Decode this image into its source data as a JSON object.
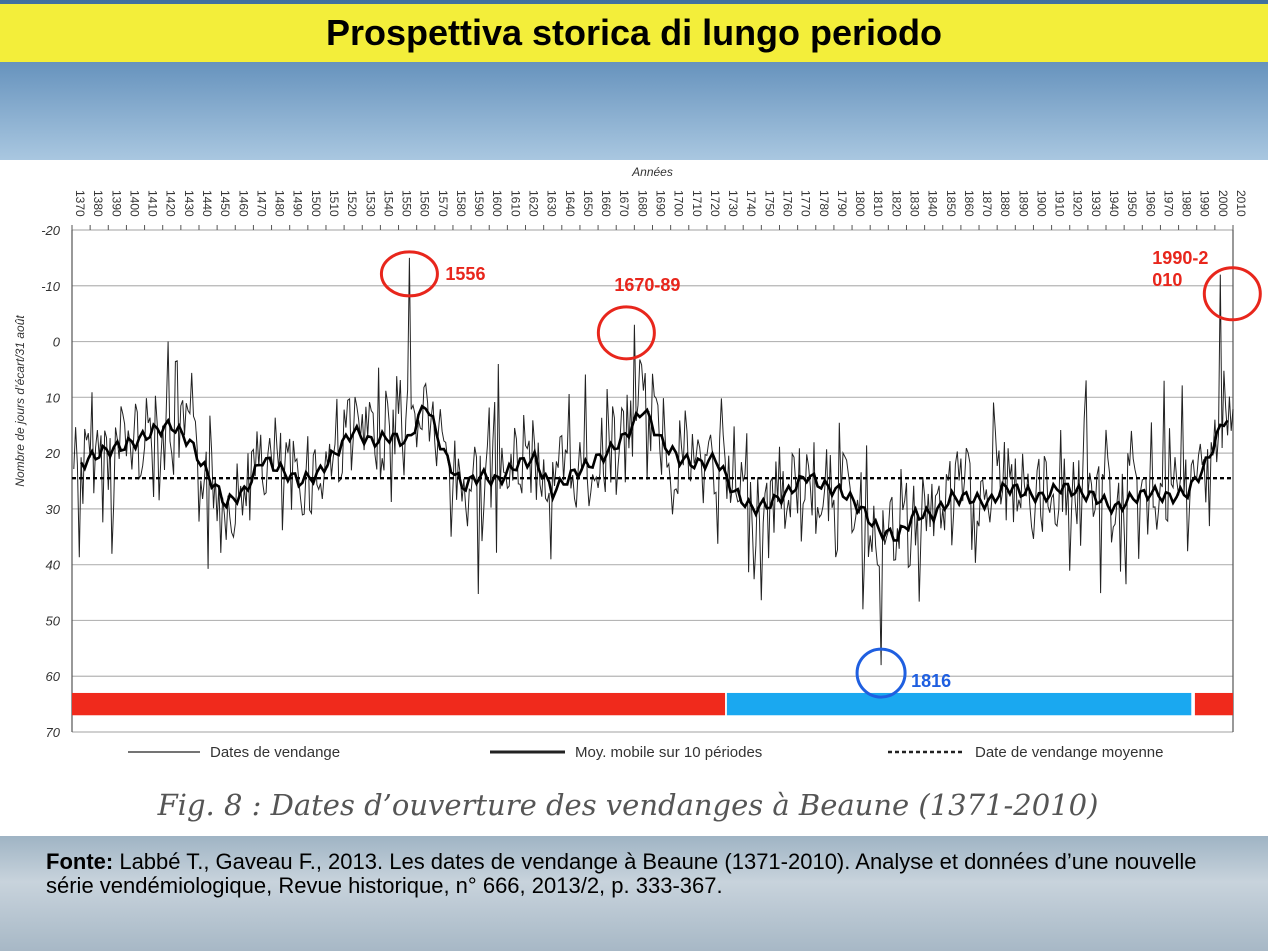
{
  "slide": {
    "title": "Prospettiva storica di lungo periodo",
    "source_label": "Fonte:",
    "source_text": "Labbé T., Gaveau F., 2013. Les dates de vendange à Beaune (1371-2010). Analyse et données d’une nouvelle série vendémiologique, Revue historique, n° 666, 2013/2, p. 333-367."
  },
  "chart_data": {
    "type": "line",
    "title": "Fig. 8 : Dates d’ouverture des vendanges à Beaune (1371-2010)",
    "xlabel": "Années",
    "ylabel": "Nombre de jours d’écart/31 août",
    "xlim": [
      1370,
      2010
    ],
    "ylim": [
      -20,
      70
    ],
    "y_inverted": true,
    "x_ticks": [
      1370,
      1380,
      1390,
      1400,
      1410,
      1420,
      1430,
      1440,
      1450,
      1460,
      1470,
      1480,
      1490,
      1500,
      1510,
      1520,
      1530,
      1540,
      1550,
      1560,
      1570,
      1580,
      1590,
      1600,
      1610,
      1620,
      1630,
      1640,
      1650,
      1660,
      1670,
      1680,
      1690,
      1700,
      1710,
      1720,
      1730,
      1740,
      1750,
      1760,
      1770,
      1780,
      1790,
      1800,
      1810,
      1820,
      1830,
      1840,
      1850,
      1860,
      1870,
      1880,
      1890,
      1900,
      1910,
      1920,
      1930,
      1940,
      1950,
      1960,
      1970,
      1980,
      1990,
      2000,
      2010
    ],
    "y_ticks": [
      -20,
      -10,
      0,
      10,
      20,
      30,
      40,
      50,
      60,
      70
    ],
    "mean_date": 24.5,
    "series": [
      {
        "name": "Moy. mobile sur 10 périodes",
        "x": [
          1375,
          1385,
          1395,
          1405,
          1415,
          1425,
          1435,
          1445,
          1455,
          1465,
          1475,
          1485,
          1495,
          1505,
          1515,
          1525,
          1535,
          1545,
          1555,
          1565,
          1575,
          1585,
          1595,
          1605,
          1615,
          1625,
          1635,
          1645,
          1655,
          1665,
          1675,
          1685,
          1695,
          1705,
          1715,
          1725,
          1735,
          1745,
          1755,
          1765,
          1775,
          1785,
          1795,
          1805,
          1815,
          1825,
          1835,
          1845,
          1855,
          1865,
          1875,
          1885,
          1895,
          1905,
          1915,
          1925,
          1935,
          1945,
          1955,
          1965,
          1975,
          1985,
          1995,
          2005
        ],
        "y": [
          22,
          20,
          19,
          18,
          16,
          15,
          18,
          24,
          29,
          27,
          21,
          23,
          25,
          24,
          20,
          16,
          18,
          17,
          18,
          11,
          20,
          26,
          24,
          25,
          22,
          21,
          27,
          24,
          22,
          20,
          17,
          12,
          18,
          21,
          22,
          21,
          27,
          30,
          29,
          27,
          24,
          26,
          27,
          30,
          34,
          35,
          31,
          31,
          28,
          28,
          29,
          26,
          27,
          28,
          26,
          27,
          28,
          30,
          28,
          27,
          28,
          27,
          22,
          14
        ]
      },
      {
        "name": "Dates de vendange",
        "extremes": [
          {
            "year": 1556,
            "value": -15
          },
          {
            "year": 1680,
            "value": -3
          },
          {
            "year": 1816,
            "value": 58
          },
          {
            "year": 2003,
            "value": -12
          }
        ]
      },
      {
        "name": "Date de vendange moyenne"
      }
    ],
    "annotations": [
      {
        "label": "1556",
        "color": "#e8261c",
        "year": 1556,
        "value": -15
      },
      {
        "label": "1670-89",
        "color": "#e8261c",
        "year": 1680,
        "value": -3
      },
      {
        "label": "1990-2\n010",
        "color": "#e8261c",
        "year": 2003,
        "value": -10
      },
      {
        "label": "1816",
        "color": "#1f5fe0",
        "year": 1816,
        "value": 58
      }
    ],
    "period_bands": [
      {
        "start": 1370,
        "end": 1730,
        "color": "#f02a1c"
      },
      {
        "start": 1731,
        "end": 1987,
        "color": "#1aa8f0"
      },
      {
        "start": 1989,
        "end": 2010,
        "color": "#f02a1c"
      }
    ],
    "legend": [
      "Dates de vendange",
      "Moy. mobile sur 10 périodes",
      "Date de vendange moyenne"
    ]
  }
}
